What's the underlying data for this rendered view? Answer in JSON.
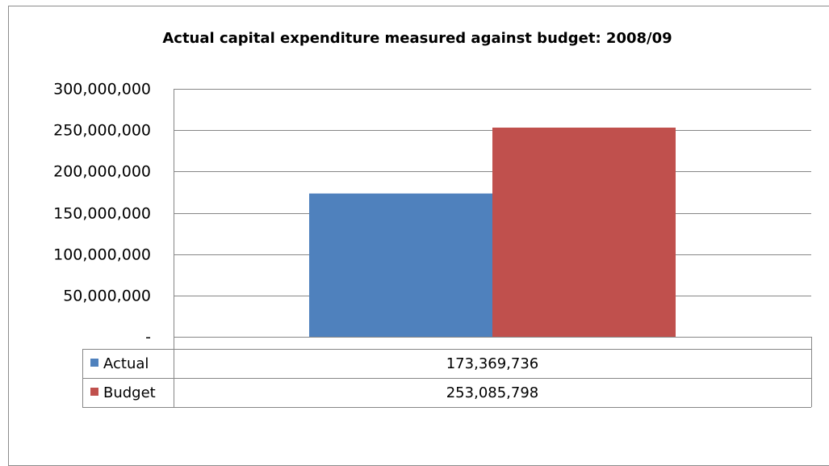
{
  "chart_data": {
    "type": "bar",
    "title": "Actual capital expenditure measured against budget: 2008/09",
    "categories": [
      ""
    ],
    "series": [
      {
        "name": "Actual",
        "values": [
          173369736
        ],
        "color": "#4F81BD",
        "label": "173,369,736"
      },
      {
        "name": "Budget",
        "values": [
          253085798
        ],
        "color": "#C0504D",
        "label": "253,085,798"
      }
    ],
    "ylim": [
      0,
      300000000
    ],
    "yticks": [
      {
        "value": 0,
        "label": "-"
      },
      {
        "value": 50000000,
        "label": "50,000,000"
      },
      {
        "value": 100000000,
        "label": "100,000,000"
      },
      {
        "value": 150000000,
        "label": "150,000,000"
      },
      {
        "value": 200000000,
        "label": "200,000,000"
      },
      {
        "value": 250000000,
        "label": "250,000,000"
      },
      {
        "value": 300000000,
        "label": "300,000,000"
      }
    ],
    "grid": true,
    "legend": "data-table"
  }
}
